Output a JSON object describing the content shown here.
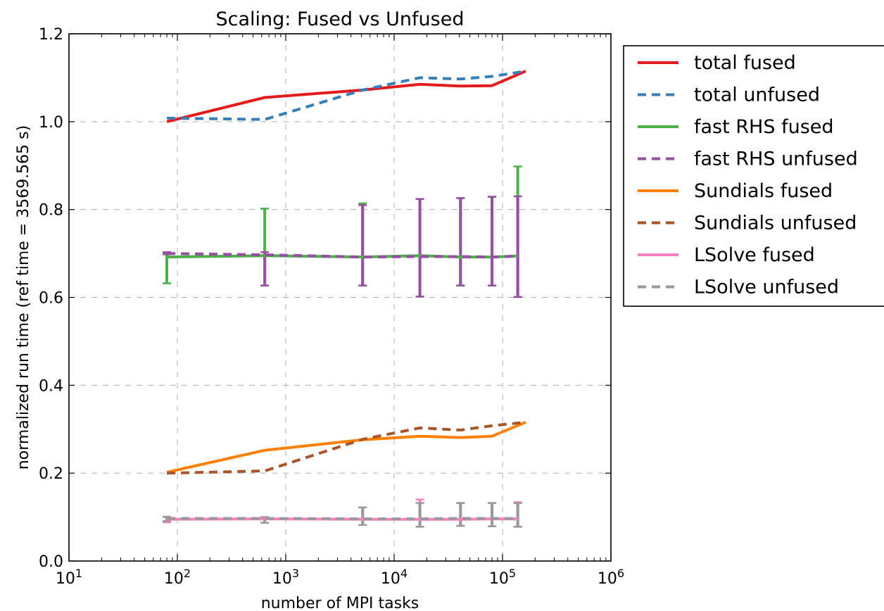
{
  "chart_data": {
    "type": "line",
    "title": "Scaling: Fused vs Unfused",
    "xlabel": "number of MPI tasks",
    "ylabel": "normalized run time (ref time = 3569.565 s)",
    "xscale": "log",
    "xlim": [
      10,
      1000000
    ],
    "ylim": [
      0.0,
      1.2
    ],
    "xticks": [
      {
        "base": "10",
        "exp": "1",
        "value": 10
      },
      {
        "base": "10",
        "exp": "2",
        "value": 100
      },
      {
        "base": "10",
        "exp": "3",
        "value": 1000
      },
      {
        "base": "10",
        "exp": "4",
        "value": 10000
      },
      {
        "base": "10",
        "exp": "5",
        "value": 100000
      },
      {
        "base": "10",
        "exp": "6",
        "value": 1000000
      }
    ],
    "yticks": [
      "0.0",
      "0.2",
      "0.4",
      "0.6",
      "0.8",
      "1.0",
      "1.2"
    ],
    "grid": true,
    "legend_position": "outside-right",
    "x": [
      80,
      640,
      5120,
      17280,
      40960,
      80000,
      138240,
      163840
    ],
    "series": [
      {
        "name": "total fused",
        "color": "#e41a1c",
        "dash": "solid",
        "x": [
          80,
          640,
          5120,
          17280,
          40960,
          80000,
          163840
        ],
        "y": [
          1.0,
          1.055,
          1.072,
          1.085,
          1.081,
          1.082,
          1.115
        ]
      },
      {
        "name": "total unfused",
        "color": "#377eb8",
        "dash": "dashed",
        "x": [
          80,
          640,
          5120,
          17280,
          40960,
          80000,
          163840
        ],
        "y": [
          1.008,
          1.005,
          1.072,
          1.1,
          1.097,
          1.103,
          1.115
        ]
      },
      {
        "name": "fast RHS fused",
        "color": "#4daf4a",
        "dash": "solid",
        "x": [
          80,
          640,
          5120,
          17280,
          40960,
          80000,
          138240
        ],
        "y": [
          0.692,
          0.695,
          0.692,
          0.695,
          0.692,
          0.692,
          0.694
        ],
        "err_low": [
          0.632,
          0.627,
          0.627,
          0.602,
          0.627,
          0.627,
          0.601
        ],
        "err_high": [
          0.702,
          0.802,
          0.814,
          0.824,
          0.826,
          0.829,
          0.898
        ]
      },
      {
        "name": "fast RHS unfused",
        "color": "#984ea3",
        "dash": "dashed",
        "x": [
          80,
          640,
          5120,
          17280,
          40960,
          80000,
          138240
        ],
        "y": [
          0.7,
          0.697,
          0.692,
          0.693,
          0.693,
          0.692,
          0.694
        ],
        "err_low": [
          0.698,
          0.627,
          0.627,
          0.602,
          0.627,
          0.627,
          0.601
        ],
        "err_high": [
          0.703,
          0.703,
          0.81,
          0.824,
          0.826,
          0.829,
          0.83
        ]
      },
      {
        "name": "Sundials fused",
        "color": "#ff7f00",
        "dash": "solid",
        "x": [
          80,
          640,
          5120,
          17280,
          40960,
          80000,
          163840
        ],
        "y": [
          0.202,
          0.252,
          0.276,
          0.284,
          0.281,
          0.284,
          0.316
        ]
      },
      {
        "name": "Sundials unfused",
        "color": "#a65628",
        "dash": "dashed",
        "x": [
          80,
          640,
          5120,
          17280,
          40960,
          80000,
          163840
        ],
        "y": [
          0.2,
          0.205,
          0.277,
          0.303,
          0.298,
          0.308,
          0.316
        ]
      },
      {
        "name": "LSolve fused",
        "color": "#f781bf",
        "dash": "solid",
        "x": [
          80,
          640,
          5120,
          17280,
          40960,
          80000,
          138240
        ],
        "y": [
          0.095,
          0.096,
          0.095,
          0.095,
          0.095,
          0.096,
          0.096
        ],
        "err_low": [
          0.088,
          0.087,
          0.082,
          0.078,
          0.08,
          0.079,
          0.078
        ],
        "err_high": [
          0.101,
          0.1,
          0.122,
          0.14,
          0.132,
          0.132,
          0.134
        ]
      },
      {
        "name": "LSolve unfused",
        "color": "#999999",
        "dash": "dashed",
        "x": [
          80,
          640,
          5120,
          17280,
          40960,
          80000,
          138240
        ],
        "y": [
          0.097,
          0.097,
          0.096,
          0.096,
          0.097,
          0.097,
          0.097
        ],
        "err_low": [
          0.091,
          0.087,
          0.082,
          0.078,
          0.08,
          0.079,
          0.078
        ],
        "err_high": [
          0.1,
          0.1,
          0.122,
          0.132,
          0.132,
          0.132,
          0.132
        ]
      }
    ]
  }
}
